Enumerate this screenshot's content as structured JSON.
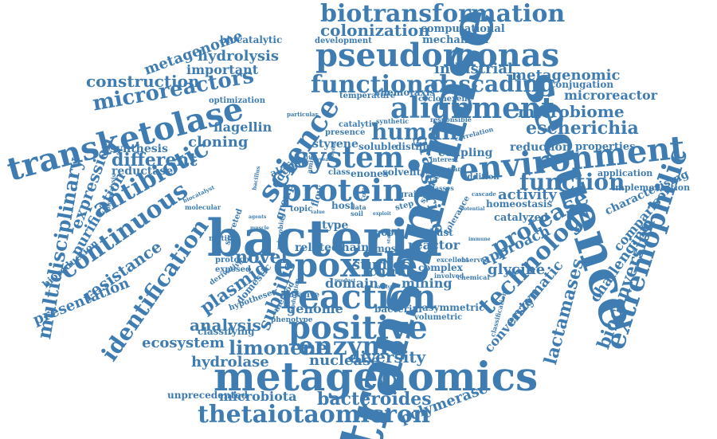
{
  "word_color": "#3e7cb1",
  "words": [
    {
      "text": "bacteria",
      "weight": 1.0
    },
    {
      "text": "transaminase",
      "weight": 1.0,
      "vertical": true
    },
    {
      "text": "sequence",
      "weight": 0.86,
      "vertical": true
    },
    {
      "text": "metagenomics",
      "weight": 0.74
    },
    {
      "text": "epoxide",
      "weight": 0.62
    },
    {
      "text": "reaction",
      "weight": 0.58
    },
    {
      "text": "pseudomonas",
      "weight": 0.58
    },
    {
      "text": "transketolase",
      "weight": 0.54
    },
    {
      "text": "environment",
      "weight": 0.54
    },
    {
      "text": "positive",
      "weight": 0.5
    },
    {
      "text": "system",
      "weight": 0.48
    },
    {
      "text": "protein",
      "weight": 0.46
    },
    {
      "text": "alignment",
      "weight": 0.44
    },
    {
      "text": "enzyme",
      "weight": 0.44
    },
    {
      "text": "continuous",
      "weight": 0.42
    },
    {
      "text": "extremophilic",
      "weight": 0.42
    },
    {
      "text": "antibiotic",
      "weight": 0.4
    },
    {
      "text": "technology",
      "weight": 0.4
    },
    {
      "text": "science",
      "weight": 0.4
    },
    {
      "text": "biotransformation",
      "weight": 0.38
    },
    {
      "text": "functional",
      "weight": 0.36
    },
    {
      "text": "thetaiotaomicron",
      "weight": 0.36
    },
    {
      "text": "identification",
      "weight": 0.36
    },
    {
      "text": "protease",
      "weight": 0.36
    },
    {
      "text": "human",
      "weight": 0.34
    },
    {
      "text": "function",
      "weight": 0.34
    },
    {
      "text": "cascading",
      "weight": 0.32
    },
    {
      "text": "microreactors",
      "weight": 0.32
    },
    {
      "text": "escherichia",
      "weight": 0.3
    },
    {
      "text": "microbiome",
      "weight": 0.28
    },
    {
      "text": "limonene",
      "weight": 0.28
    },
    {
      "text": "multidisciplinary",
      "weight": 0.28
    },
    {
      "text": "different",
      "weight": 0.28
    },
    {
      "text": "bacteroides",
      "weight": 0.26
    },
    {
      "text": "bioconversion",
      "weight": 0.26
    },
    {
      "text": "construction",
      "weight": 0.26
    },
    {
      "text": "novel",
      "weight": 0.26
    },
    {
      "text": "diversity",
      "weight": 0.26
    },
    {
      "text": "resistance",
      "weight": 0.26
    },
    {
      "text": "lactamases",
      "weight": 0.26
    },
    {
      "text": "gram",
      "weight": 0.26
    },
    {
      "text": "serine",
      "weight": 0.24
    },
    {
      "text": "colonization",
      "weight": 0.24
    },
    {
      "text": "plasmid",
      "weight": 0.24
    },
    {
      "text": "analysis",
      "weight": 0.22
    },
    {
      "text": "ecosystem",
      "weight": 0.22
    },
    {
      "text": "expression",
      "weight": 0.22
    },
    {
      "text": "subtilis",
      "weight": 0.22
    },
    {
      "text": "metagenome",
      "weight": 0.2
    },
    {
      "text": "hydrolysis",
      "weight": 0.2
    },
    {
      "text": "important",
      "weight": 0.18
    },
    {
      "text": "cloning",
      "weight": 0.2
    },
    {
      "text": "industrial",
      "weight": 0.2
    },
    {
      "text": "metagenomic",
      "weight": 0.2
    },
    {
      "text": "microreactor",
      "weight": 0.2
    },
    {
      "text": "approach",
      "weight": 0.22
    },
    {
      "text": "activity",
      "weight": 0.2
    },
    {
      "text": "glycine",
      "weight": 0.2
    },
    {
      "text": "studies",
      "weight": 0.2
    },
    {
      "text": "domain",
      "weight": 0.18
    },
    {
      "text": "nuclease",
      "weight": 0.2
    },
    {
      "text": "hydrolase",
      "weight": 0.2
    },
    {
      "text": "microbiota",
      "weight": 0.18
    },
    {
      "text": "polymerase",
      "weight": 0.2
    },
    {
      "text": "presentation",
      "weight": 0.2
    },
    {
      "text": "purification",
      "weight": 0.2
    },
    {
      "text": "enzymatic",
      "weight": 0.2
    },
    {
      "text": "conversion",
      "weight": 0.18
    },
    {
      "text": "challenging",
      "weight": 0.2
    },
    {
      "text": "comparison",
      "weight": 0.18
    },
    {
      "text": "characterising",
      "weight": 0.16
    },
    {
      "text": "flagellin",
      "weight": 0.18
    },
    {
      "text": "synthesis",
      "weight": 0.16
    },
    {
      "text": "reductase",
      "weight": 0.14
    },
    {
      "text": "reduction",
      "weight": 0.16
    },
    {
      "text": "properties",
      "weight": 0.14
    },
    {
      "text": "mechanism",
      "weight": 0.14
    },
    {
      "text": "computational",
      "weight": 0.14
    },
    {
      "text": "chiral",
      "weight": 0.18
    },
    {
      "text": "genome",
      "weight": 0.16
    },
    {
      "text": "mining",
      "weight": 0.16
    },
    {
      "text": "reactor",
      "weight": 0.16
    },
    {
      "text": "classifying",
      "weight": 0.12
    },
    {
      "text": "unprecedented",
      "weight": 0.12
    },
    {
      "text": "implementation",
      "weight": 0.12
    },
    {
      "text": "application",
      "weight": 0.12
    },
    {
      "text": "coupling",
      "weight": 0.14
    },
    {
      "text": "catalyzed",
      "weight": 0.14
    },
    {
      "text": "homeostasis",
      "weight": 0.12
    },
    {
      "text": "bioreduction",
      "weight": 0.12
    },
    {
      "text": "biocatalytic",
      "weight": 0.12
    },
    {
      "text": "conjugation",
      "weight": 0.12
    },
    {
      "text": "chemotaxis",
      "weight": 0.12
    },
    {
      "text": "development",
      "weight": 0.1
    },
    {
      "text": "optimization",
      "weight": 0.1
    },
    {
      "text": "temperature",
      "weight": 0.1
    },
    {
      "text": "cyclohexene",
      "weight": 0.1
    },
    {
      "text": "styrene",
      "weight": 0.14
    },
    {
      "text": "soluble",
      "weight": 0.12
    },
    {
      "text": "distiller",
      "weight": 0.12
    },
    {
      "text": "solvent",
      "weight": 0.12
    },
    {
      "text": "enones",
      "weight": 0.12
    },
    {
      "text": "addition",
      "weight": 0.1
    },
    {
      "text": "type",
      "weight": 0.14
    },
    {
      "text": "host",
      "weight": 0.12
    },
    {
      "text": "related",
      "weight": 0.14
    },
    {
      "text": "chain",
      "weight": 0.14
    },
    {
      "text": "most",
      "weight": 0.12
    },
    {
      "text": "good",
      "weight": 0.12
    },
    {
      "text": "robust",
      "weight": 0.12
    },
    {
      "text": "complex",
      "weight": 0.12
    },
    {
      "text": "bacterial",
      "weight": 0.12
    },
    {
      "text": "asymmetric",
      "weight": 0.12
    },
    {
      "text": "volumetric",
      "weight": 0.1
    },
    {
      "text": "protocol",
      "weight": 0.1
    },
    {
      "text": "exposed",
      "weight": 0.1
    },
    {
      "text": "derivative",
      "weight": 0.08
    },
    {
      "text": "motility",
      "weight": 0.08
    },
    {
      "text": "secreted",
      "weight": 0.1
    },
    {
      "text": "putative",
      "weight": 0.1
    },
    {
      "text": "method",
      "weight": 0.1
    },
    {
      "text": "phenotype",
      "weight": 0.08
    },
    {
      "text": "domestic",
      "weight": 0.12
    },
    {
      "text": "hypotheses",
      "weight": 0.1
    },
    {
      "text": "topic",
      "weight": 0.1
    },
    {
      "text": "alcohol",
      "weight": 0.12
    },
    {
      "text": "flow",
      "weight": 0.12
    },
    {
      "text": "ddgs",
      "weight": 0.14
    },
    {
      "text": "group",
      "weight": 0.14
    },
    {
      "text": "class",
      "weight": 0.1
    },
    {
      "text": "presence",
      "weight": 0.1
    },
    {
      "text": "catalytic",
      "weight": 0.1
    },
    {
      "text": "interest",
      "weight": 0.08
    },
    {
      "text": "variant",
      "weight": 0.08
    },
    {
      "text": "correlation",
      "weight": 0.08
    },
    {
      "text": "responsible",
      "weight": 0.08
    },
    {
      "text": "synthetic",
      "weight": 0.08
    },
    {
      "text": "particular",
      "weight": 0.07
    },
    {
      "text": "classes",
      "weight": 0.08
    },
    {
      "text": "tolerance",
      "weight": 0.1
    },
    {
      "text": "surface",
      "weight": 0.1
    },
    {
      "text": "grain",
      "weight": 0.1
    },
    {
      "text": "step",
      "weight": 0.1
    },
    {
      "text": "data",
      "weight": 0.08
    },
    {
      "text": "soil",
      "weight": 0.08
    },
    {
      "text": "amine",
      "weight": 0.08
    },
    {
      "text": "molecular",
      "weight": 0.08
    },
    {
      "text": "biocatalysis",
      "weight": 0.07
    },
    {
      "text": "biocatalyst",
      "weight": 0.07
    },
    {
      "text": "excellent",
      "weight": 0.08
    },
    {
      "text": "observed",
      "weight": 0.08
    },
    {
      "text": "involved",
      "weight": 0.08
    },
    {
      "text": "chemical",
      "weight": 0.08
    },
    {
      "text": "immune",
      "weight": 0.06
    },
    {
      "text": "potential",
      "weight": 0.06
    },
    {
      "text": "cascade",
      "weight": 0.07
    },
    {
      "text": "classification",
      "weight": 0.08
    },
    {
      "text": "product",
      "weight": 0.06
    },
    {
      "text": "modulation",
      "weight": 0.07
    },
    {
      "text": "bacillus",
      "weight": 0.07
    },
    {
      "text": "muscle",
      "weight": 0.06
    },
    {
      "text": "microbial",
      "weight": 0.08
    },
    {
      "text": "agents",
      "weight": 0.06
    },
    {
      "text": "profile",
      "weight": 0.06
    },
    {
      "text": "exploit",
      "weight": 0.06
    },
    {
      "text": "study",
      "weight": 0.06
    },
    {
      "text": "reveal",
      "weight": 0.06
    },
    {
      "text": "dried",
      "weight": 0.06
    },
    {
      "text": "coli",
      "weight": 0.08
    },
    {
      "text": "value",
      "weight": 0.06
    },
    {
      "text": "catalyst",
      "weight": 0.06
    }
  ]
}
